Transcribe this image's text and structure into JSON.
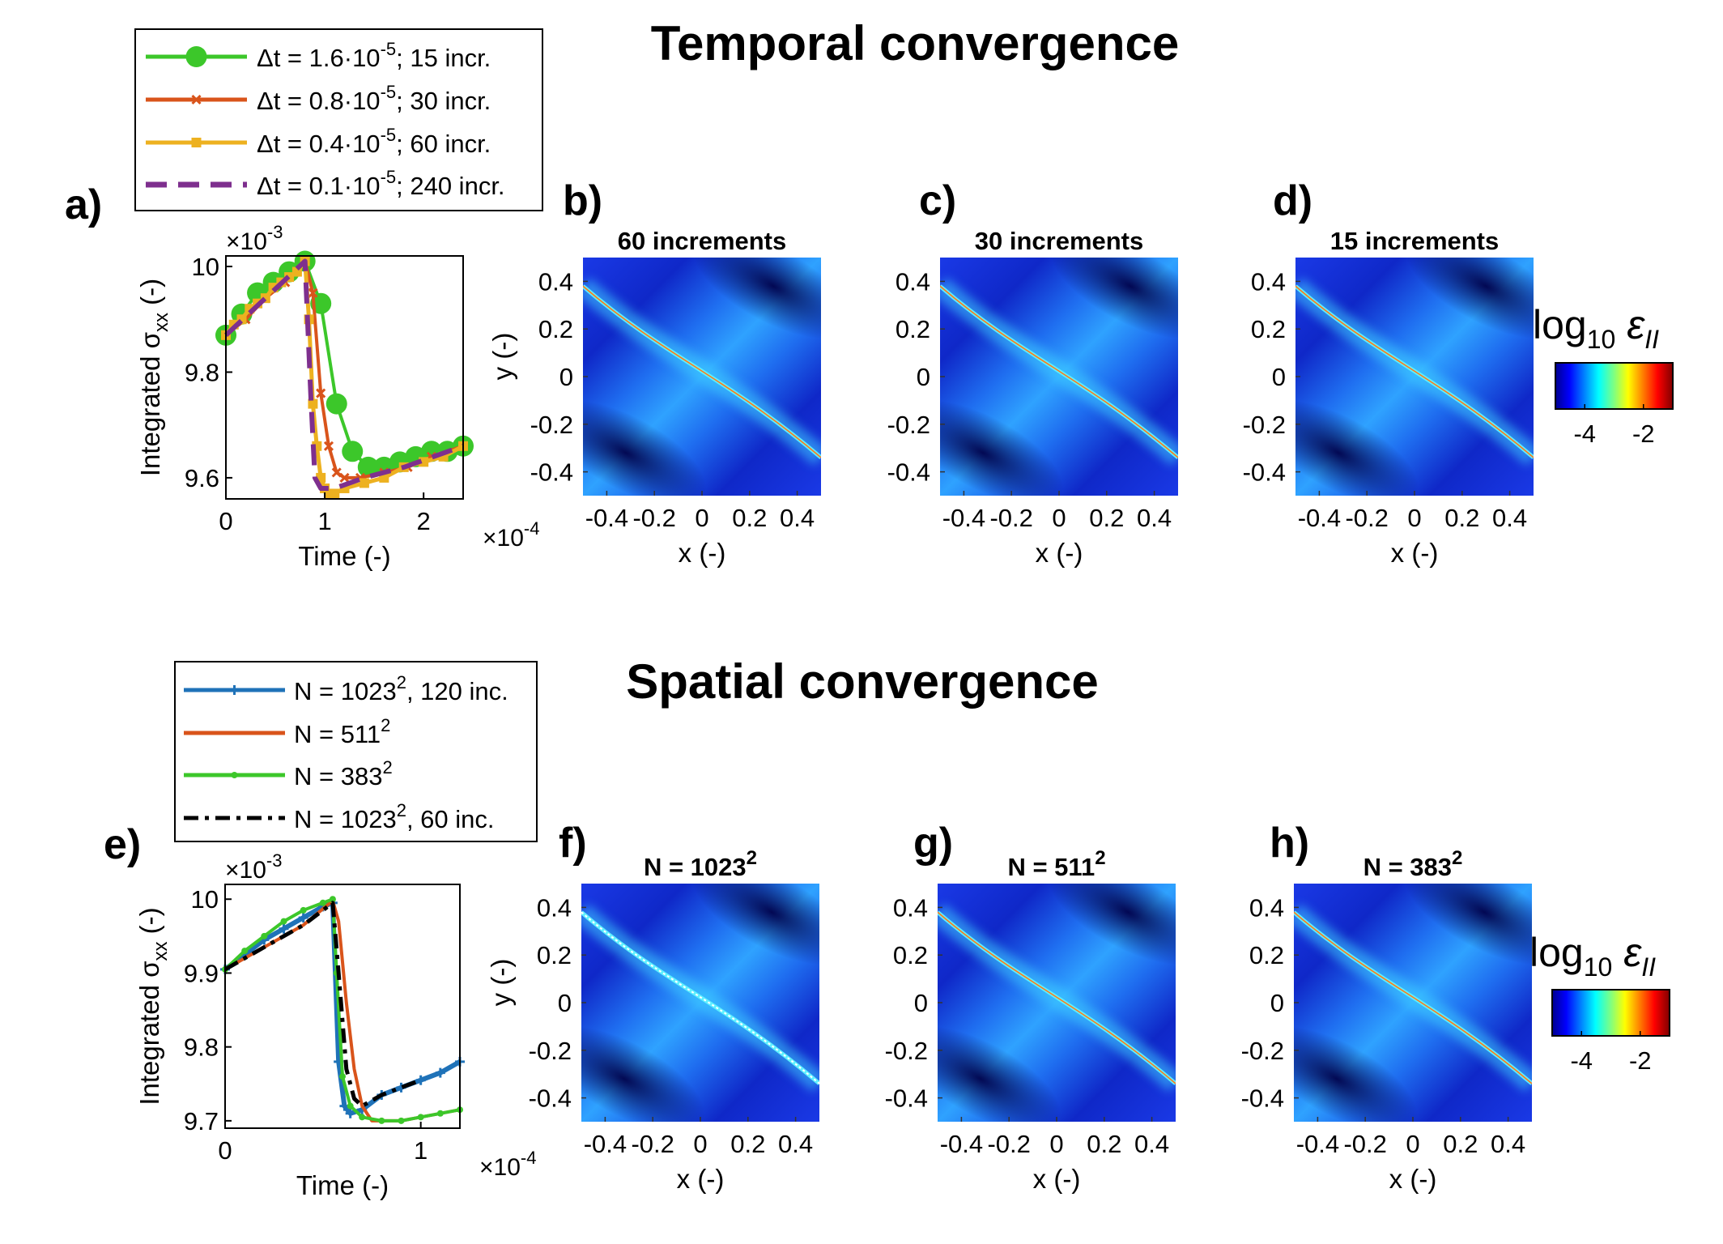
{
  "sections": [
    {
      "title": "Temporal convergence"
    },
    {
      "title": "Spatial convergence"
    }
  ],
  "colors": {
    "green": "#3cc72a",
    "red": "#d9541b",
    "yellow": "#edb120",
    "purple": "#7e2f8e",
    "blue": "#1f72b8",
    "black": "#000000"
  },
  "legends": [
    {
      "entries": [
        {
          "text": "Δt = 1.6·10",
          "sup": "-5",
          "tail": "; 15 incr.",
          "color": "#3cc72a",
          "style": "solid",
          "marker": "circle"
        },
        {
          "text": "Δt = 0.8·10",
          "sup": "-5",
          "tail": "; 30 incr.",
          "color": "#d9541b",
          "style": "solid",
          "marker": "x"
        },
        {
          "text": "Δt = 0.4·10",
          "sup": "-5",
          "tail": "; 60 incr.",
          "color": "#edb120",
          "style": "solid",
          "marker": "square"
        },
        {
          "text": "Δt = 0.1·10",
          "sup": "-5",
          "tail": "; 240 incr.",
          "color": "#7e2f8e",
          "style": "dashed",
          "marker": "none"
        }
      ]
    },
    {
      "entries": [
        {
          "text": "N = 1023",
          "sup": "2",
          "tail": ", 120 inc.",
          "color": "#1f72b8",
          "style": "solid",
          "marker": "plus"
        },
        {
          "text": "N = 511",
          "sup": "2",
          "tail": "",
          "color": "#d9541b",
          "style": "solid",
          "marker": "none"
        },
        {
          "text": "N = 383",
          "sup": "2",
          "tail": "",
          "color": "#3cc72a",
          "style": "solid",
          "marker": "dot"
        },
        {
          "text": "N = 1023",
          "sup": "2",
          "tail": ", 60 inc.",
          "color": "#000000",
          "style": "dashdot",
          "marker": "none"
        }
      ]
    }
  ],
  "chart_data": [
    {
      "panel": "a)",
      "type": "line",
      "xlabel": "Time  (-)",
      "x_exponent": "×10",
      "x_exponent_power": "-4",
      "ylabel": "Integrated σ",
      "ylabel_sub": "xx",
      "ylabel_tail": " (-)",
      "y_exponent": "×10",
      "y_exponent_power": "-3",
      "xlim": [
        0,
        2.4
      ],
      "ylim": [
        9.56,
        10.02
      ],
      "xticks": [
        0,
        1,
        2
      ],
      "xticklabels": [
        "0",
        "1",
        "2"
      ],
      "yticks": [
        9.6,
        9.8,
        10
      ],
      "yticklabels": [
        "9.6",
        "9.8",
        "10"
      ],
      "series": [
        {
          "name": "15 incr.",
          "color": "#3cc72a",
          "style": "solid",
          "marker": "circle",
          "width": 4,
          "x": [
            0.0,
            0.16,
            0.32,
            0.48,
            0.64,
            0.8,
            0.96,
            1.12,
            1.28,
            1.44,
            1.6,
            1.76,
            1.92,
            2.08,
            2.24,
            2.4
          ],
          "y": [
            9.87,
            9.91,
            9.95,
            9.97,
            9.99,
            10.01,
            9.93,
            9.74,
            9.65,
            9.62,
            9.62,
            9.63,
            9.64,
            9.65,
            9.65,
            9.66
          ]
        },
        {
          "name": "30 incr.",
          "color": "#d9541b",
          "style": "solid",
          "marker": "x",
          "width": 4,
          "x": [
            0.0,
            0.2,
            0.4,
            0.6,
            0.8,
            0.88,
            0.96,
            1.04,
            1.12,
            1.2,
            1.36,
            1.6,
            1.84,
            2.08,
            2.4
          ],
          "y": [
            9.87,
            9.9,
            9.94,
            9.97,
            10.01,
            9.95,
            9.76,
            9.66,
            9.61,
            9.6,
            9.6,
            9.61,
            9.62,
            9.64,
            9.66
          ]
        },
        {
          "name": "60 incr.",
          "color": "#edb120",
          "style": "solid",
          "marker": "square",
          "width": 5,
          "x": [
            0.0,
            0.08,
            0.16,
            0.24,
            0.32,
            0.4,
            0.48,
            0.56,
            0.64,
            0.72,
            0.8,
            0.84,
            0.88,
            0.92,
            0.96,
            1.0,
            1.04,
            1.1,
            1.2,
            1.4,
            1.6,
            1.8,
            2.0,
            2.2,
            2.4
          ],
          "y": [
            9.87,
            9.89,
            9.9,
            9.92,
            9.93,
            9.94,
            9.96,
            9.97,
            9.98,
            9.99,
            10.01,
            9.9,
            9.74,
            9.66,
            9.6,
            9.58,
            9.57,
            9.57,
            9.58,
            9.59,
            9.6,
            9.62,
            9.63,
            9.64,
            9.66
          ]
        },
        {
          "name": "240 incr.",
          "color": "#7e2f8e",
          "style": "dashed",
          "marker": "none",
          "width": 6,
          "x": [
            0.0,
            0.8,
            0.86,
            0.9,
            0.96,
            1.1,
            1.4,
            1.8,
            2.4
          ],
          "y": [
            9.87,
            10.01,
            9.75,
            9.6,
            9.58,
            9.58,
            9.6,
            9.62,
            9.66
          ]
        }
      ]
    },
    {
      "panel": "e)",
      "type": "line",
      "xlabel": "Time (-)",
      "x_exponent": "×10",
      "x_exponent_power": "-4",
      "ylabel": "Integrated σ",
      "ylabel_sub": "xx",
      "ylabel_tail": " (-)",
      "y_exponent": "×10",
      "y_exponent_power": "-3",
      "xlim": [
        0,
        1.2
      ],
      "ylim": [
        9.69,
        10.02
      ],
      "xticks": [
        0,
        1
      ],
      "xticklabels": [
        "0",
        "1"
      ],
      "yticks": [
        9.7,
        9.8,
        9.9,
        10
      ],
      "yticklabels": [
        "9.7",
        "9.8",
        "9.9",
        "10"
      ],
      "series": [
        {
          "name": "N = 1023², 120 inc.",
          "color": "#1f72b8",
          "style": "solid",
          "marker": "plus",
          "width": 6,
          "x": [
            0.0,
            0.1,
            0.2,
            0.3,
            0.4,
            0.5,
            0.55,
            0.58,
            0.61,
            0.64,
            0.7,
            0.8,
            0.9,
            1.0,
            1.1,
            1.2
          ],
          "y": [
            9.905,
            9.925,
            9.945,
            9.96,
            9.975,
            9.99,
            9.995,
            9.78,
            9.72,
            9.71,
            9.715,
            9.735,
            9.745,
            9.755,
            9.765,
            9.78
          ]
        },
        {
          "name": "N = 511²",
          "color": "#d9541b",
          "style": "solid",
          "marker": "none",
          "width": 4,
          "x": [
            0.0,
            0.2,
            0.4,
            0.55,
            0.58,
            0.62,
            0.66,
            0.7,
            0.75,
            0.8,
            0.9,
            1.0,
            1.1,
            1.2
          ],
          "y": [
            9.905,
            9.935,
            9.965,
            9.998,
            9.97,
            9.86,
            9.77,
            9.72,
            9.7,
            9.7,
            9.7,
            9.705,
            9.71,
            9.715
          ]
        },
        {
          "name": "N = 383²",
          "color": "#3cc72a",
          "style": "solid",
          "marker": "dot",
          "width": 4,
          "x": [
            0.0,
            0.1,
            0.2,
            0.3,
            0.4,
            0.5,
            0.55,
            0.57,
            0.6,
            0.64,
            0.7,
            0.8,
            0.9,
            1.0,
            1.1,
            1.2
          ],
          "y": [
            9.905,
            9.93,
            9.95,
            9.97,
            9.985,
            9.995,
            10.0,
            9.9,
            9.76,
            9.72,
            9.705,
            9.7,
            9.7,
            9.705,
            9.71,
            9.715
          ]
        },
        {
          "name": "N = 1023², 60 inc.",
          "color": "#000000",
          "style": "dashdot",
          "marker": "none",
          "width": 5,
          "x": [
            0.0,
            0.2,
            0.4,
            0.55,
            0.58,
            0.62,
            0.66,
            0.7,
            0.8,
            0.9,
            1.0
          ],
          "y": [
            9.905,
            9.935,
            9.965,
            9.995,
            9.9,
            9.77,
            9.73,
            9.72,
            9.735,
            9.745,
            9.755
          ]
        }
      ]
    },
    {
      "panel": "b)",
      "type": "heatmap",
      "title": "60 increments",
      "title_sup": "",
      "xlabel": "x (-)",
      "ylabel": "y (-)",
      "show_ylabel": true,
      "xlim": [
        -0.5,
        0.5
      ],
      "ylim": [
        -0.5,
        0.5
      ],
      "xticklabels": [
        "-0.4",
        "-0.2",
        "0",
        "0.2",
        "0.4"
      ],
      "yticklabels": [
        "0.4",
        "0.2",
        "0",
        "-0.2",
        "-0.4"
      ],
      "band": "red"
    },
    {
      "panel": "c)",
      "type": "heatmap",
      "title": "30 increments",
      "title_sup": "",
      "xlabel": "x (-)",
      "ylabel": "",
      "show_ylabel": false,
      "xlim": [
        -0.5,
        0.5
      ],
      "ylim": [
        -0.5,
        0.5
      ],
      "xticklabels": [
        "-0.4",
        "-0.2",
        "0",
        "0.2",
        "0.4"
      ],
      "yticklabels": [
        "0.4",
        "0.2",
        "0",
        "-0.2",
        "-0.4"
      ],
      "band": "red"
    },
    {
      "panel": "d)",
      "type": "heatmap",
      "title": "15 increments",
      "title_sup": "",
      "xlabel": "x (-)",
      "ylabel": "",
      "show_ylabel": false,
      "xlim": [
        -0.5,
        0.5
      ],
      "ylim": [
        -0.5,
        0.5
      ],
      "xticklabels": [
        "-0.4",
        "-0.2",
        "0",
        "0.2",
        "0.4"
      ],
      "yticklabels": [
        "0.4",
        "0.2",
        "0",
        "-0.2",
        "-0.4"
      ],
      "band": "red"
    },
    {
      "panel": "f)",
      "type": "heatmap",
      "title": "N = 1023",
      "title_sup": "2",
      "xlabel": "x (-)",
      "ylabel": "y (-)",
      "show_ylabel": true,
      "xlim": [
        -0.5,
        0.5
      ],
      "ylim": [
        -0.5,
        0.5
      ],
      "xticklabels": [
        "-0.4",
        "-0.2",
        "0",
        "0.2",
        "0.4"
      ],
      "yticklabels": [
        "0.4",
        "0.2",
        "0",
        "-0.2",
        "-0.4"
      ],
      "band": "white"
    },
    {
      "panel": "g)",
      "type": "heatmap",
      "title": "N = 511",
      "title_sup": "2",
      "xlabel": "x (-)",
      "ylabel": "",
      "show_ylabel": false,
      "xlim": [
        -0.5,
        0.5
      ],
      "ylim": [
        -0.5,
        0.5
      ],
      "xticklabels": [
        "-0.4",
        "-0.2",
        "0",
        "0.2",
        "0.4"
      ],
      "yticklabels": [
        "0.4",
        "0.2",
        "0",
        "-0.2",
        "-0.4"
      ],
      "band": "red"
    },
    {
      "panel": "h)",
      "type": "heatmap",
      "title": "N = 383",
      "title_sup": "2",
      "xlabel": "x (-)",
      "ylabel": "",
      "show_ylabel": false,
      "xlim": [
        -0.5,
        0.5
      ],
      "ylim": [
        -0.5,
        0.5
      ],
      "xticklabels": [
        "-0.4",
        "-0.2",
        "0",
        "0.2",
        "0.4"
      ],
      "yticklabels": [
        "0.4",
        "0.2",
        "0",
        "-0.2",
        "-0.4"
      ],
      "band": "red"
    }
  ],
  "colorbars": [
    {
      "label": "log",
      "label_sub": "10",
      "symbol": "ε",
      "symbol_sub": "II",
      "ticks": [
        "-4",
        "-2"
      ],
      "range": [
        -5,
        -1
      ]
    },
    {
      "label": "log",
      "label_sub": "10",
      "symbol": "ε",
      "symbol_sub": "II",
      "ticks": [
        "-4",
        "-2"
      ],
      "range": [
        -5,
        -1
      ]
    }
  ]
}
